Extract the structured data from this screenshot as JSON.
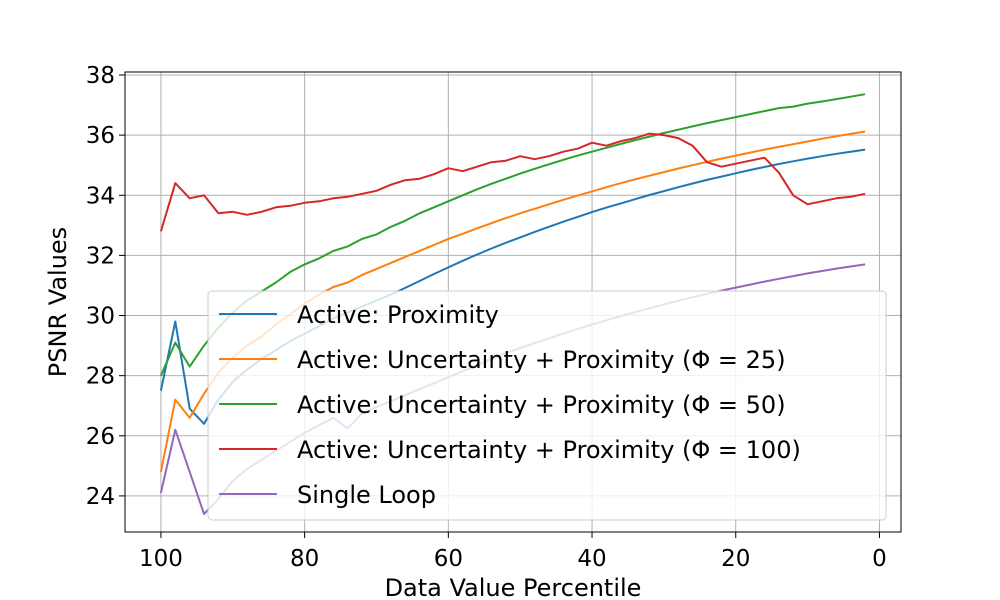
{
  "chart_data": {
    "type": "line",
    "title": "",
    "xlabel": "Data Value Percentile",
    "ylabel": "PSNR Values",
    "xlim": [
      105,
      -3
    ],
    "ylim": [
      22.8,
      38.1
    ],
    "x_reversed": true,
    "xticks": [
      100,
      80,
      60,
      40,
      20,
      0
    ],
    "yticks": [
      24,
      26,
      28,
      30,
      32,
      34,
      36,
      38
    ],
    "grid": true,
    "legend_position": "lower-right",
    "x": [
      100,
      98,
      96,
      94,
      92,
      90,
      88,
      86,
      84,
      82,
      80,
      78,
      76,
      74,
      72,
      70,
      68,
      66,
      64,
      62,
      60,
      58,
      56,
      54,
      52,
      50,
      48,
      46,
      44,
      42,
      40,
      38,
      36,
      34,
      32,
      30,
      28,
      26,
      24,
      22,
      20,
      18,
      16,
      14,
      12,
      10,
      8,
      6,
      4,
      2
    ],
    "series": [
      {
        "name": "Active: Proximity",
        "color": "#1f77b4",
        "values": [
          27.5,
          29.8,
          26.9,
          26.4,
          27.2,
          27.8,
          28.2,
          28.55,
          28.85,
          29.15,
          29.4,
          29.65,
          29.9,
          30.1,
          30.3,
          30.5,
          30.7,
          30.92,
          31.15,
          31.38,
          31.6,
          31.82,
          32.03,
          32.23,
          32.42,
          32.6,
          32.78,
          32.95,
          33.12,
          33.28,
          33.44,
          33.59,
          33.73,
          33.87,
          34.01,
          34.14,
          34.27,
          34.39,
          34.51,
          34.62,
          34.73,
          34.84,
          34.94,
          35.04,
          35.13,
          35.22,
          35.3,
          35.38,
          35.45,
          35.52
        ]
      },
      {
        "name": "Active: Uncertainty + Proximity (Φ = 25)",
        "color": "#ff7f0e",
        "values": [
          24.8,
          27.2,
          26.6,
          27.4,
          28.1,
          28.6,
          29.0,
          29.3,
          29.7,
          30.05,
          30.4,
          30.7,
          30.95,
          31.1,
          31.35,
          31.55,
          31.75,
          31.95,
          32.15,
          32.35,
          32.55,
          32.72,
          32.9,
          33.07,
          33.24,
          33.4,
          33.55,
          33.7,
          33.85,
          33.99,
          34.13,
          34.27,
          34.4,
          34.53,
          34.65,
          34.77,
          34.89,
          35.0,
          35.11,
          35.22,
          35.32,
          35.42,
          35.52,
          35.61,
          35.7,
          35.79,
          35.88,
          35.96,
          36.04,
          36.12
        ]
      },
      {
        "name": "Active: Uncertainty + Proximity (Φ = 50)",
        "color": "#2ca02c",
        "values": [
          28.0,
          29.1,
          28.3,
          29.0,
          29.6,
          30.1,
          30.5,
          30.8,
          31.1,
          31.45,
          31.7,
          31.9,
          32.15,
          32.3,
          32.55,
          32.7,
          32.95,
          33.15,
          33.4,
          33.6,
          33.8,
          34.0,
          34.2,
          34.38,
          34.55,
          34.72,
          34.88,
          35.03,
          35.18,
          35.32,
          35.45,
          35.58,
          35.71,
          35.83,
          35.95,
          36.07,
          36.18,
          36.29,
          36.4,
          36.5,
          36.6,
          36.7,
          36.8,
          36.9,
          36.95,
          37.05,
          37.12,
          37.2,
          37.28,
          37.36
        ]
      },
      {
        "name": "Active: Uncertainty + Proximity (Φ = 100)",
        "color": "#d62728",
        "values": [
          32.8,
          34.4,
          33.9,
          34.0,
          33.4,
          33.45,
          33.35,
          33.45,
          33.6,
          33.65,
          33.75,
          33.8,
          33.9,
          33.95,
          34.05,
          34.15,
          34.35,
          34.5,
          34.55,
          34.7,
          34.9,
          34.8,
          34.95,
          35.1,
          35.15,
          35.3,
          35.2,
          35.3,
          35.45,
          35.55,
          35.75,
          35.65,
          35.8,
          35.9,
          36.05,
          36.0,
          35.9,
          35.65,
          35.1,
          34.95,
          35.05,
          35.15,
          35.25,
          34.75,
          34.0,
          33.7,
          33.8,
          33.9,
          33.95,
          34.05
        ]
      },
      {
        "name": "Single Loop",
        "color": "#9467bd",
        "values": [
          24.1,
          26.2,
          24.8,
          23.4,
          23.9,
          24.5,
          24.9,
          25.2,
          25.5,
          25.8,
          26.1,
          26.35,
          26.6,
          26.25,
          26.75,
          26.95,
          27.15,
          27.35,
          27.55,
          27.75,
          27.95,
          28.15,
          28.35,
          28.55,
          28.75,
          28.92,
          29.08,
          29.24,
          29.4,
          29.55,
          29.7,
          29.84,
          29.98,
          30.11,
          30.24,
          30.37,
          30.49,
          30.61,
          30.72,
          30.83,
          30.93,
          31.03,
          31.13,
          31.22,
          31.31,
          31.4,
          31.48,
          31.56,
          31.63,
          31.7
        ]
      }
    ]
  }
}
